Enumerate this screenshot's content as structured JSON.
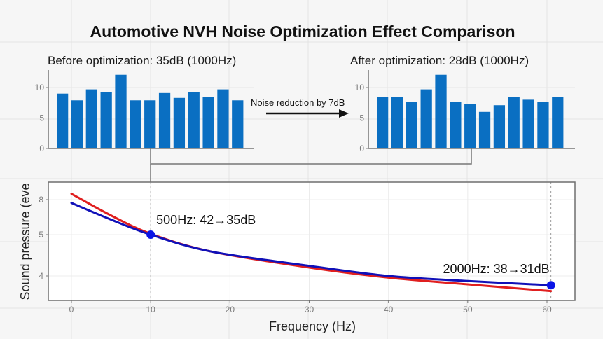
{
  "chart_data": {
    "title": "Automotive NVH Noise Optimization Effect Comparison",
    "colors": {
      "bar": "#0a6fc2",
      "line_before": "#e01f1f",
      "line_after": "#1010b8",
      "marker": "#0a14e6",
      "background": "#f6f6f6",
      "grid": "#e4e4e4",
      "axis": "#777777"
    },
    "panels": [
      {
        "id": "before",
        "type": "bar",
        "subtitle": "Before optimization: 35dB (1000Hz)",
        "ylim": [
          0,
          13
        ],
        "yticks": [
          0,
          5,
          10
        ],
        "values": [
          9.0,
          7.9,
          9.7,
          9.3,
          12.1,
          7.9,
          7.9,
          9.1,
          8.3,
          9.3,
          8.4,
          9.7,
          7.9
        ]
      },
      {
        "id": "after",
        "type": "bar",
        "subtitle": "After optimization: 28dB (1000Hz)",
        "ylim": [
          0,
          13
        ],
        "yticks": [
          0,
          5,
          10
        ],
        "values": [
          8.4,
          8.4,
          7.6,
          9.7,
          12.1,
          7.6,
          7.3,
          6.0,
          7.1,
          8.4,
          8.0,
          7.6,
          8.4
        ]
      }
    ],
    "arrow_annotation": "Noise reduction by 7dB",
    "line_chart": {
      "type": "line",
      "xlabel": "Frequency (Hz)",
      "ylabel": "Sound pressure (eve",
      "xlim": [
        -3,
        64
      ],
      "xticks": [
        0,
        10,
        20,
        30,
        40,
        50,
        60
      ],
      "ytick_labels": [
        "8",
        "5",
        "4"
      ],
      "ytick_positions": [
        7.4,
        5.3,
        2.85
      ],
      "ylim": [
        2.2,
        8.4
      ],
      "grid": true,
      "series": [
        {
          "name": "before",
          "color_key": "line_before",
          "x": [
            0,
            5,
            10,
            17.6,
            30,
            40,
            50,
            60.5
          ],
          "y": [
            7.75,
            6.45,
            5.35,
            4.3,
            3.35,
            2.75,
            2.35,
            1.95
          ]
        },
        {
          "name": "after",
          "color_key": "line_after",
          "x": [
            0,
            5,
            10,
            17.6,
            30,
            40,
            50,
            60.5
          ],
          "y": [
            7.2,
            6.2,
            5.3,
            4.3,
            3.45,
            2.85,
            2.55,
            2.3
          ]
        }
      ],
      "markers": [
        {
          "x": 10,
          "y": 5.3,
          "label": "500Hz: 42→35dB"
        },
        {
          "x": 60.5,
          "y": 2.3,
          "label": "2000Hz: 38→31dB"
        }
      ]
    }
  }
}
